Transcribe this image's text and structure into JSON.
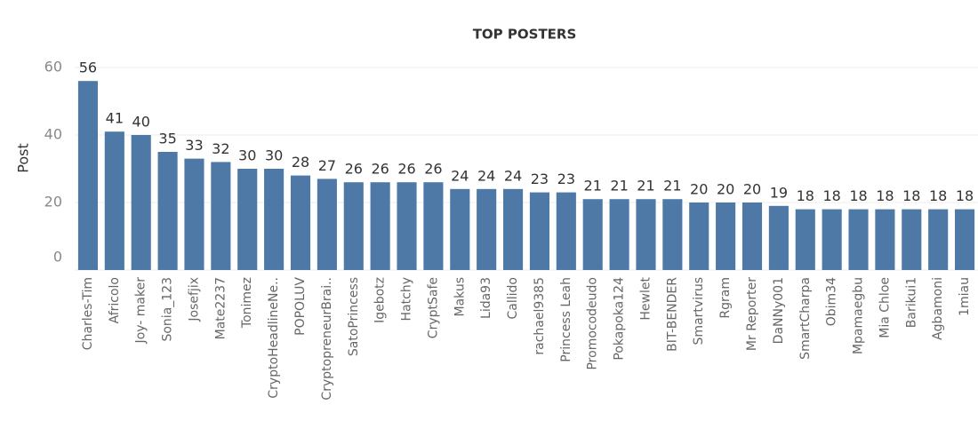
{
  "chart_data": {
    "type": "bar",
    "title": "TOP POSTERS",
    "y_label": "Post",
    "categories": [
      "Charles-Tim",
      "Africolo",
      "Joy- maker",
      "Sonia_123",
      "Josefjix",
      "Mate2237",
      "Tonimez",
      "CryptoHeadlineNe..",
      "POPOLUV",
      "CryptopreneurBrai..",
      "SatoPrincess",
      "Igebotz",
      "Hatchy",
      "CryptSafe",
      "Makus",
      "Lida93",
      "Callido",
      "rachael9385",
      "Princess Leah",
      "Promocodeudo",
      "Pokapoka124",
      "Hewlet",
      "BIT-BENDER",
      "Smartvirus",
      "Rgram",
      "Mr Reporter",
      "DaNNy001",
      "SmartCharpa",
      "Obim34",
      "Mpamaegbu",
      "Mia Chloe",
      "Barikui1",
      "Agbamoni",
      "1miau"
    ],
    "values": [
      56,
      41,
      40,
      35,
      33,
      32,
      30,
      30,
      28,
      27,
      26,
      26,
      26,
      26,
      24,
      24,
      24,
      23,
      23,
      21,
      21,
      21,
      21,
      20,
      20,
      20,
      19,
      18,
      18,
      18,
      18,
      18,
      18,
      18
    ],
    "color": "#4e79a7",
    "ylim": [
      0,
      63
    ],
    "yticks": [
      0,
      20,
      40,
      60
    ],
    "grid": true
  }
}
